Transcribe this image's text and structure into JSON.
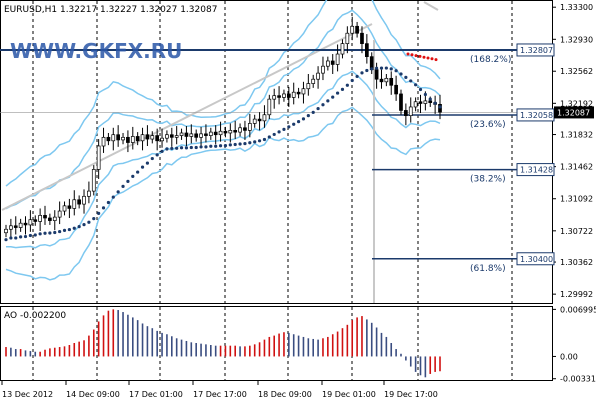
{
  "chart_title": "EURUSD,H1  1.32217 1.32227 1.32027 1.32087",
  "watermark": "WWW.GKFX.RU",
  "colors": {
    "background": "#ffffff",
    "axis": "#000000",
    "grid": "#000000",
    "candle_up": "#ffffff",
    "candle_down": "#000000",
    "bands": "#7ec8f0",
    "ma_dots": "#1b3a6b",
    "trendline": "#c8c8c8",
    "level_line": "#1b3a6b",
    "price_label_bg": "#ffffff",
    "ao_up": "#d01010",
    "ao_down": "#3a4d80",
    "sar_red": "#e01010"
  },
  "chart_data": [
    {
      "type": "candlestick",
      "symbol": "EURUSD",
      "timeframe": "H1",
      "ylim": [
        1.2989,
        1.3336
      ],
      "y_ticks": [
        "1.33300",
        "1.32930",
        "1.32562",
        "1.32192",
        "1.31832",
        "1.31462",
        "1.31092",
        "1.30722",
        "1.30362",
        "1.29992"
      ],
      "x_ticks": [
        "13 Dec 2012",
        "14 Dec 09:00",
        "17 Dec 01:00",
        "17 Dec 17:00",
        "18 Dec 09:00",
        "19 Dec 01:00",
        "19 Dec 17:00"
      ],
      "current_price_label": "1.32087",
      "close_series": [
        1.3074,
        1.3078,
        1.3076,
        1.3081,
        1.3079,
        1.3085,
        1.3083,
        1.309,
        1.3087,
        1.3084,
        1.3088,
        1.3095,
        1.3101,
        1.3098,
        1.3108,
        1.3103,
        1.3112,
        1.3118,
        1.3143,
        1.317,
        1.318,
        1.3176,
        1.3183,
        1.3177,
        1.318,
        1.3174,
        1.3181,
        1.3176,
        1.3183,
        1.3178,
        1.3182,
        1.3176,
        1.3179,
        1.3183,
        1.318,
        1.3182,
        1.3185,
        1.3181,
        1.3184,
        1.318,
        1.3184,
        1.3182,
        1.3186,
        1.3183,
        1.3187,
        1.3185,
        1.3188,
        1.3186,
        1.3191,
        1.3188,
        1.3196,
        1.3201,
        1.3199,
        1.3206,
        1.3224,
        1.3228,
        1.3226,
        1.323,
        1.3226,
        1.3232,
        1.323,
        1.3236,
        1.3242,
        1.3247,
        1.3254,
        1.3262,
        1.3268,
        1.3264,
        1.3276,
        1.3288,
        1.33,
        1.3308,
        1.33,
        1.3288,
        1.3273,
        1.3258,
        1.3247,
        1.3244,
        1.3248,
        1.324,
        1.323,
        1.3211,
        1.3205,
        1.3215,
        1.3221,
        1.3219,
        1.3222,
        1.322,
        1.3218,
        1.3209
      ],
      "levels": [
        {
          "price": 1.32807,
          "label": "1.32807",
          "fib": "(168.2%)"
        },
        {
          "price": 1.32058,
          "label": "1.32058",
          "fib": "(23.6%)"
        },
        {
          "price": 1.31428,
          "label": "1.31428",
          "fib": "(38.2%)"
        },
        {
          "price": 1.304,
          "label": "1.30400",
          "fib": "(61.8%)"
        }
      ]
    },
    {
      "type": "bar",
      "name": "AO",
      "header": "AO -0.002200",
      "ylim": [
        -0.0035,
        0.0072
      ],
      "y_ticks": [
        "0.006995",
        "0.00",
        "-0.00331"
      ],
      "values": [
        0.0014,
        0.0013,
        0.0011,
        0.0011,
        0.0009,
        0.0008,
        0.0007,
        0.0007,
        0.001,
        0.0012,
        0.0013,
        0.0014,
        0.0015,
        0.0017,
        0.002,
        0.0022,
        0.0024,
        0.0031,
        0.004,
        0.0052,
        0.0061,
        0.0068,
        0.007,
        0.0069,
        0.0066,
        0.0062,
        0.0058,
        0.0054,
        0.0049,
        0.0045,
        0.0042,
        0.0038,
        0.0035,
        0.0033,
        0.003,
        0.0027,
        0.0025,
        0.0023,
        0.0021,
        0.002,
        0.0019,
        0.0018,
        0.0017,
        0.0016,
        0.0016,
        0.0016,
        0.0016,
        0.0016,
        0.0015,
        0.0015,
        0.0016,
        0.0018,
        0.0021,
        0.0025,
        0.0029,
        0.0031,
        0.0034,
        0.0036,
        0.0035,
        0.0033,
        0.0031,
        0.0029,
        0.0027,
        0.0026,
        0.0025,
        0.0027,
        0.0029,
        0.0033,
        0.0037,
        0.0042,
        0.0047,
        0.0054,
        0.0058,
        0.006,
        0.0055,
        0.005,
        0.0043,
        0.0035,
        0.0029,
        0.002,
        0.0011,
        0.0004,
        -0.0006,
        -0.0015,
        -0.0023,
        -0.0028,
        -0.0031,
        -0.0026,
        -0.0023,
        -0.0022
      ]
    }
  ]
}
